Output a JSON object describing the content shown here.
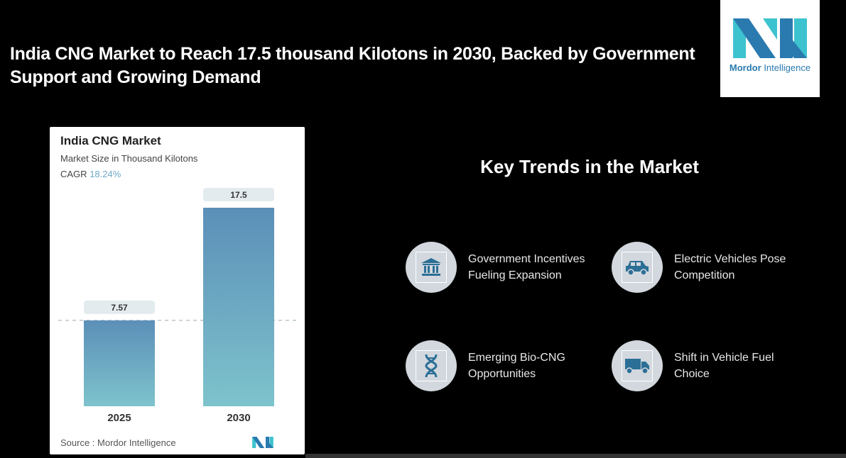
{
  "headline": "India CNG Market to Reach 17.5 thousand Kilotons in 2030, Backed by Government Support and Growing Demand",
  "brand": {
    "name_bold": "Mordor",
    "name_light": "Intelligence",
    "colors": {
      "dark": "#2a7ab0",
      "light": "#3cc3cf"
    }
  },
  "card": {
    "title": "India CNG Market",
    "subtitle": "Market Size in Thousand Kilotons",
    "cagr_label": "CAGR",
    "cagr_value": "18.24%",
    "source": "Source :  Mordor Intelligence"
  },
  "chart_data": {
    "type": "bar",
    "title": "India CNG Market",
    "subtitle": "Market Size in Thousand Kilotons",
    "categories": [
      "2025",
      "2030"
    ],
    "values": [
      7.57,
      17.5
    ],
    "value_labels": [
      "7.57",
      "17.5"
    ],
    "xlabel": "",
    "ylabel": "Market Size in Thousand Kilotons",
    "ylim": [
      0,
      17.5
    ],
    "grid": false,
    "reference_line": 7.57,
    "colors": {
      "top": "#5b8fb8",
      "bottom": "#7ec3cc"
    }
  },
  "trends": {
    "title": "Key Trends in the Market",
    "items": [
      {
        "label": "Government Incentives Fueling Expansion",
        "icon": "bank-icon"
      },
      {
        "label": "Electric Vehicles Pose Competition",
        "icon": "car-icon"
      },
      {
        "label": "Emerging Bio-CNG Opportunities",
        "icon": "dna-icon"
      },
      {
        "label": "Shift in Vehicle Fuel Choice",
        "icon": "truck-icon"
      }
    ],
    "icon_color": "#2c6f96"
  }
}
